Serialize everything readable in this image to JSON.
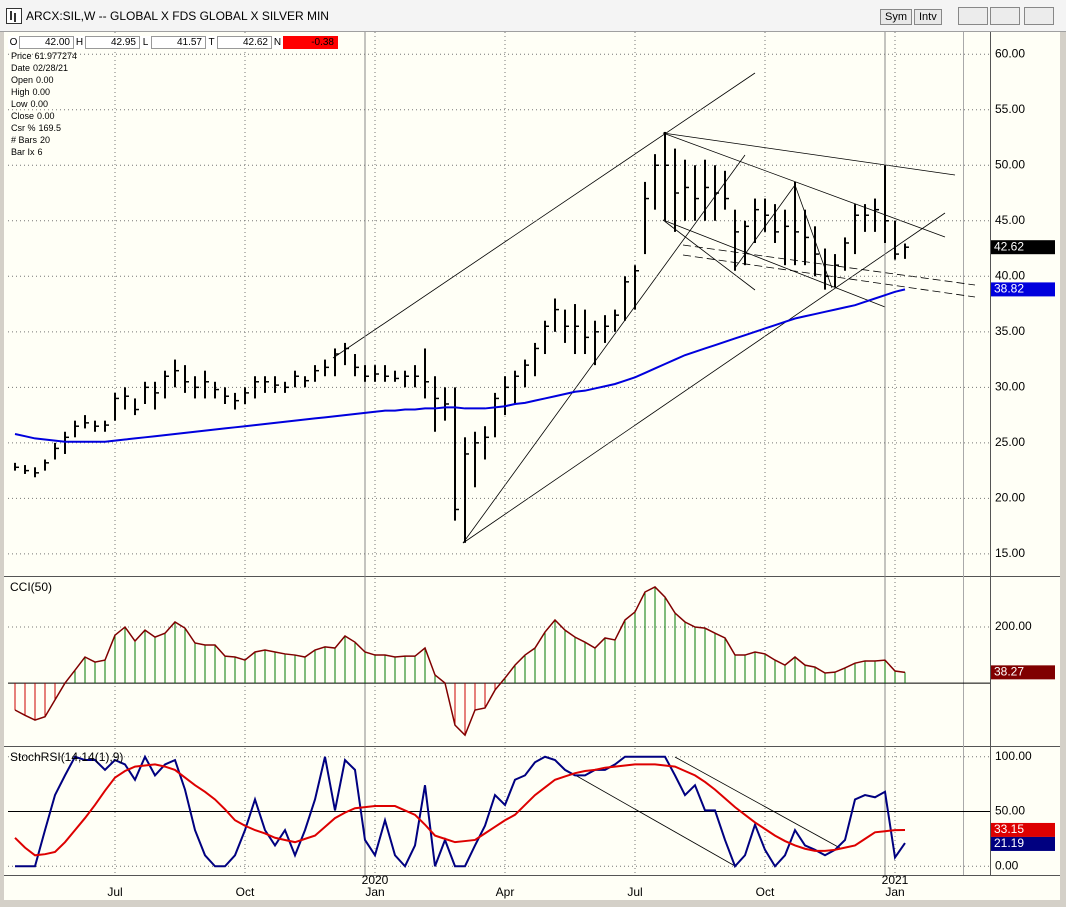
{
  "window": {
    "title": "ARCX:SIL,W -- GLOBAL X FDS GLOBAL X SILVER MIN",
    "buttons": [
      "Sym",
      "Intv"
    ]
  },
  "info_bar": [
    {
      "label": "O",
      "value": "42.00"
    },
    {
      "label": "H",
      "value": "42.95"
    },
    {
      "label": "L",
      "value": "41.57"
    },
    {
      "label": "T",
      "value": "42.62"
    },
    {
      "label": "N",
      "value": "-0.38",
      "color": "#ff0000"
    }
  ],
  "data_window": [
    {
      "label": "Price",
      "value": "61.977274"
    },
    {
      "label": "Date",
      "value": "02/28/21"
    },
    {
      "label": "Open",
      "value": "0.00"
    },
    {
      "label": "High",
      "value": "0.00"
    },
    {
      "label": "Low",
      "value": "0.00"
    },
    {
      "label": "Close",
      "value": "0.00"
    },
    {
      "label": "Csr %",
      "value": "169.5"
    },
    {
      "label": "# Bars",
      "value": "20"
    },
    {
      "label": "Bar Ix",
      "value": "6"
    }
  ],
  "chart_data": [
    {
      "type": "ohlc",
      "color": "#000000",
      "high": [
        23.2,
        23,
        22.8,
        23.5,
        25,
        26,
        27,
        27.5,
        27,
        27,
        29.5,
        30,
        29,
        30.5,
        30.5,
        31.5,
        32.5,
        32,
        31,
        31.5,
        30.5,
        30,
        29.5,
        30,
        31,
        31,
        31,
        30.5,
        31.5,
        31,
        32,
        32.5,
        33.5,
        34,
        33,
        32,
        32,
        32,
        31.5,
        31.5,
        32,
        33.5,
        31,
        30,
        30,
        25.5,
        26,
        26.5,
        29.5,
        31,
        31.5,
        32.5,
        34,
        36,
        38,
        37,
        37.5,
        37,
        36,
        36.5,
        37,
        40,
        41,
        48.5,
        51,
        53,
        51.5,
        50.5,
        50,
        50.5,
        50,
        49.5,
        46,
        45,
        47,
        47,
        46.5,
        46,
        48.5,
        46,
        44.5,
        42.5,
        42,
        43.5,
        46.5,
        46.5,
        47,
        50,
        45,
        42.95
      ],
      "low": [
        22.5,
        22.2,
        21.9,
        22.5,
        23.5,
        24,
        25.5,
        26.3,
        26,
        26,
        27,
        28,
        27.5,
        28.5,
        28,
        29,
        30,
        29.5,
        29,
        29,
        29,
        28.5,
        28,
        28.5,
        29,
        29.5,
        29.5,
        29.5,
        30,
        30,
        30.5,
        31,
        31,
        32,
        31,
        30.5,
        30.5,
        30.5,
        30.5,
        30,
        30,
        29,
        26,
        27,
        18,
        16,
        21,
        23.5,
        25.5,
        27.5,
        28.5,
        30,
        31,
        33,
        35,
        34,
        33,
        33,
        32,
        34,
        35,
        36,
        37,
        42,
        46,
        45,
        44,
        45,
        45,
        45,
        45,
        46,
        40.5,
        41,
        43,
        44,
        43,
        41,
        41,
        41,
        40,
        38.8,
        39,
        40.5,
        42,
        44,
        44,
        43,
        41.5,
        41.57
      ],
      "close": [
        22.8,
        22.5,
        22.3,
        23.2,
        24.5,
        25.5,
        26.5,
        26.8,
        26.5,
        26.6,
        29,
        29.2,
        28,
        30,
        29.5,
        31,
        31.5,
        30.5,
        30,
        30.5,
        29.8,
        29.2,
        28.8,
        29.5,
        30.5,
        30.5,
        30.2,
        30,
        31,
        30.6,
        31.5,
        31.8,
        33,
        33.5,
        31.8,
        31,
        31.2,
        31,
        30.8,
        31,
        31,
        30.5,
        29,
        28.5,
        19,
        24,
        25,
        25.5,
        29,
        30,
        31,
        32,
        33.5,
        35.5,
        37,
        35.5,
        35.5,
        34.5,
        35,
        35.5,
        36.5,
        39.5,
        40.5,
        47,
        50,
        50,
        47.5,
        48,
        47,
        48,
        47.5,
        47,
        44,
        44.5,
        46,
        45.5,
        44,
        44.5,
        44,
        43.5,
        42,
        40,
        41,
        43,
        45.5,
        45.5,
        46,
        45,
        42,
        42.62
      ],
      "ma": {
        "color": "#0000dd",
        "values": [
          25.8,
          25.6,
          25.4,
          25.3,
          25.2,
          25.1,
          25.1,
          25.1,
          25.1,
          25.1,
          25.2,
          25.3,
          25.4,
          25.5,
          25.6,
          25.7,
          25.8,
          25.9,
          26.0,
          26.1,
          26.2,
          26.3,
          26.4,
          26.5,
          26.6,
          26.7,
          26.8,
          26.9,
          27.0,
          27.1,
          27.2,
          27.3,
          27.4,
          27.5,
          27.6,
          27.7,
          27.8,
          27.9,
          27.9,
          28.0,
          28.0,
          28.1,
          28.1,
          28.2,
          28.2,
          28.1,
          28.1,
          28.1,
          28.2,
          28.3,
          28.5,
          28.6,
          28.8,
          29.0,
          29.2,
          29.4,
          29.6,
          29.7,
          29.9,
          30.1,
          30.3,
          30.6,
          30.9,
          31.3,
          31.7,
          32.1,
          32.5,
          32.9,
          33.2,
          33.5,
          33.8,
          34.1,
          34.4,
          34.7,
          35.0,
          35.3,
          35.6,
          35.9,
          36.2,
          36.4,
          36.6,
          36.8,
          37.0,
          37.2,
          37.4,
          37.7,
          38.0,
          38.3,
          38.6,
          38.82
        ]
      },
      "ylim": [
        13.1,
        62
      ],
      "yticks": [
        {
          "value": 15,
          "label": "15.00"
        },
        {
          "value": 20,
          "label": "20.00"
        },
        {
          "value": 25,
          "label": "25.00"
        },
        {
          "value": 30,
          "label": "30.00"
        },
        {
          "value": 35,
          "label": "35.00"
        },
        {
          "value": 40,
          "label": "40.00"
        },
        {
          "value": 45,
          "label": "45.00"
        },
        {
          "value": 50,
          "label": "50.00"
        },
        {
          "value": 55,
          "label": "55.00"
        },
        {
          "value": 60,
          "label": "60.00"
        }
      ],
      "grid": true
    },
    {
      "type": "bar",
      "title": "CCI(50)",
      "values": [
        -96,
        -115,
        -132,
        -120,
        -60,
        0,
        46,
        93,
        75,
        82,
        171,
        200,
        150,
        189,
        164,
        178,
        218,
        196,
        143,
        136,
        136,
        96,
        93,
        82,
        111,
        118,
        111,
        104,
        100,
        93,
        118,
        129,
        125,
        168,
        146,
        111,
        100,
        100,
        93,
        96,
        96,
        125,
        29,
        0,
        -150,
        -186,
        -96,
        -89,
        -25,
        18,
        64,
        100,
        125,
        182,
        225,
        189,
        164,
        146,
        125,
        161,
        154,
        225,
        254,
        325,
        343,
        307,
        250,
        218,
        200,
        196,
        178,
        161,
        100,
        100,
        111,
        104,
        82,
        64,
        93,
        64,
        57,
        36,
        39,
        54,
        71,
        79,
        79,
        82,
        43,
        38.27
      ],
      "colors": {
        "positive": "#007a00",
        "negative": "#cc0000",
        "line": "#800000"
      },
      "ylim": [
        -221,
        375
      ],
      "yticks": [
        {
          "value": 200,
          "label": "200.00"
        }
      ],
      "reference_line": 0,
      "grid": true
    },
    {
      "type": "line",
      "title": "StochRSI(14,14(1),9)",
      "categories": [
        null,
        null,
        null,
        null,
        null,
        null,
        null,
        null,
        null,
        null,
        "Jul",
        null,
        null,
        null,
        null,
        null,
        null,
        null,
        null,
        null,
        null,
        null,
        null,
        "Oct",
        null,
        null,
        null,
        null,
        null,
        null,
        null,
        null,
        null,
        null,
        null,
        null,
        "Jan",
        null,
        null,
        null,
        null,
        null,
        null,
        null,
        null,
        null,
        null,
        null,
        null,
        "Apr",
        null,
        null,
        null,
        null,
        null,
        null,
        null,
        null,
        null,
        null,
        null,
        null,
        "Jul",
        null,
        null,
        null,
        null,
        null,
        null,
        null,
        null,
        null,
        null,
        null,
        null,
        "Oct",
        null,
        null,
        null,
        null,
        null,
        null,
        null,
        null,
        null,
        null,
        null,
        null,
        "Jan",
        null
      ],
      "years": [
        null,
        null,
        null,
        null,
        null,
        null,
        null,
        null,
        null,
        null,
        null,
        null,
        null,
        null,
        null,
        null,
        null,
        null,
        null,
        null,
        null,
        null,
        null,
        null,
        null,
        null,
        null,
        null,
        null,
        null,
        null,
        null,
        null,
        null,
        null,
        null,
        "2020",
        null,
        null,
        null,
        null,
        null,
        null,
        null,
        null,
        null,
        null,
        null,
        null,
        null,
        null,
        null,
        null,
        null,
        null,
        null,
        null,
        null,
        null,
        null,
        null,
        null,
        null,
        null,
        null,
        null,
        null,
        null,
        null,
        null,
        null,
        null,
        null,
        null,
        null,
        null,
        null,
        null,
        null,
        null,
        null,
        null,
        null,
        null,
        null,
        null,
        null,
        null,
        "2021",
        null
      ],
      "series": [
        {
          "color": "#000080",
          "values": [
            0,
            0,
            0,
            33,
            65,
            83,
            100,
            97,
            97,
            88,
            97,
            93,
            79,
            100,
            83,
            93,
            97,
            70,
            33,
            10,
            0,
            0,
            10,
            33,
            61,
            33,
            19,
            33,
            10,
            33,
            61,
            100,
            51,
            97,
            88,
            24,
            10,
            42,
            10,
            0,
            19,
            74,
            0,
            24,
            0,
            0,
            19,
            37,
            65,
            56,
            79,
            83,
            95,
            100,
            97,
            88,
            83,
            83,
            88,
            88,
            93,
            100,
            100,
            100,
            100,
            100,
            83,
            65,
            74,
            51,
            51,
            24,
            0,
            10,
            38,
            15,
            0,
            10,
            33,
            19,
            15,
            10,
            15,
            24,
            61,
            65,
            63,
            68,
            8,
            21.19
          ]
        },
        {
          "color": "#dd0000",
          "values": [
            26,
            17,
            10,
            11,
            13,
            22,
            33,
            44,
            56,
            69,
            81,
            87,
            91,
            92,
            93,
            91,
            88,
            81,
            74,
            68,
            61,
            52,
            42,
            37,
            33,
            30,
            26,
            24,
            22,
            25,
            28,
            36,
            44,
            49,
            53,
            54,
            55,
            55,
            55,
            51,
            47,
            38,
            28,
            25,
            22,
            23,
            24,
            30,
            36,
            42,
            47,
            56,
            65,
            72,
            79,
            82,
            85,
            87,
            88,
            90,
            91,
            92,
            93,
            93,
            93,
            92,
            91,
            87,
            83,
            77,
            70,
            62,
            54,
            47,
            40,
            34,
            28,
            23,
            19,
            16,
            14,
            14,
            15,
            17,
            19,
            25,
            31,
            32,
            33,
            33.15
          ]
        }
      ],
      "ylim": [
        -8,
        108
      ],
      "yticks": [
        {
          "value": 0,
          "label": "0.00"
        },
        {
          "value": 50,
          "label": "50.00"
        },
        {
          "value": 100,
          "label": "100.00"
        }
      ],
      "reference_line": 50,
      "grid": true
    }
  ]
}
